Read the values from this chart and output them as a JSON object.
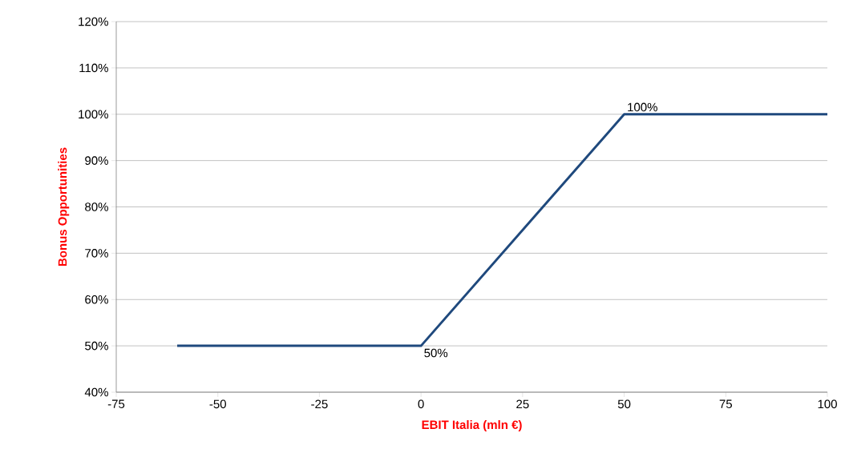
{
  "chart_data": {
    "type": "line",
    "xlabel": "EBIT Italia (mln €)",
    "ylabel": "Bonus Opportunities",
    "x": [
      -60,
      0,
      50,
      100
    ],
    "series": [
      {
        "color": "#1f497d",
        "values": [
          50,
          50,
          100,
          100
        ]
      }
    ],
    "xlim": [
      -75,
      100
    ],
    "xticks": [
      -75,
      -50,
      -25,
      0,
      25,
      50,
      75,
      100
    ],
    "ylim": [
      40,
      120
    ],
    "yticks": [
      {
        "value": 40,
        "label": "40%"
      },
      {
        "value": 50,
        "label": "50%"
      },
      {
        "value": 60,
        "label": "60%"
      },
      {
        "value": 70,
        "label": "70%"
      },
      {
        "value": 80,
        "label": "80%"
      },
      {
        "value": 90,
        "label": "90%"
      },
      {
        "value": 100,
        "label": "100%"
      },
      {
        "value": 110,
        "label": "110%"
      },
      {
        "value": 120,
        "label": "120%"
      }
    ],
    "grid": "y",
    "marker": "none",
    "line_style": "solid",
    "annotations": [
      {
        "text": "100%",
        "x": 50,
        "y": 100
      },
      {
        "text": "50%",
        "x": 0,
        "y": 50
      }
    ]
  }
}
